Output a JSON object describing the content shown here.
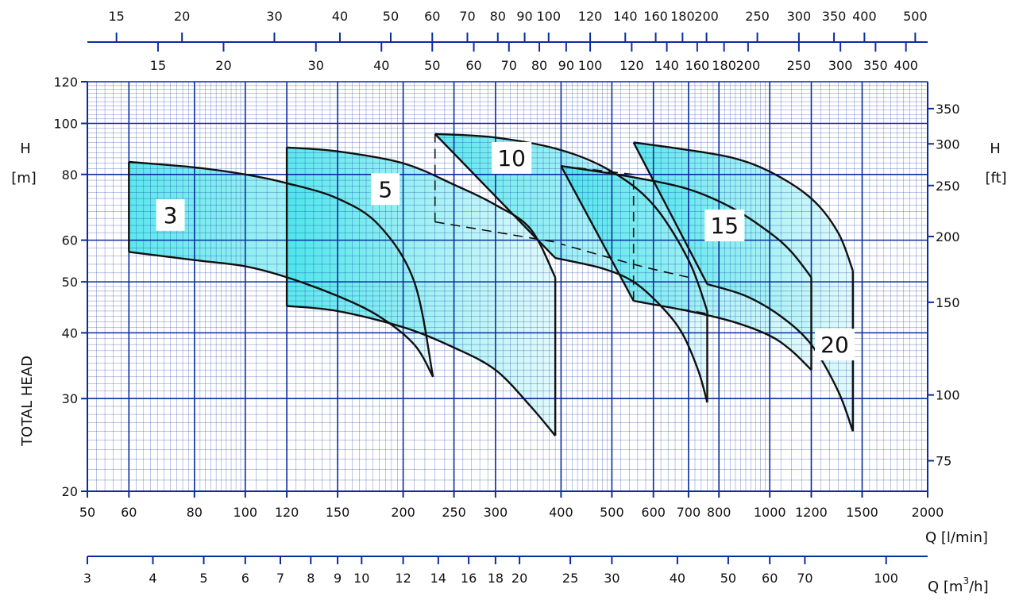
{
  "chart_data": {
    "type": "area",
    "xscale": "log",
    "yscale": "log",
    "xlim": [
      50,
      2000
    ],
    "ylim": [
      20,
      120
    ],
    "xlabel": "Q [l/min]",
    "ylabel_left": "TOTAL HEAD",
    "ylabel_left_unit_h": "H",
    "ylabel_left_unit": "[m]",
    "ylabel_right_unit_h": "H",
    "ylabel_right_unit": "[ft]",
    "x2label": "Q [m",
    "x2label_sup": "3",
    "x2label_end": "/h]",
    "grid": true,
    "colors": {
      "grid": "#0b2e9e",
      "fill": "#5ee9ee",
      "curve": "#111111",
      "axis": "#0b2e9e"
    },
    "x_ticks_lpm": [
      50,
      60,
      80,
      100,
      120,
      150,
      200,
      250,
      300,
      400,
      500,
      600,
      700,
      800,
      1000,
      1200,
      1500,
      2000
    ],
    "y_ticks_m": [
      20,
      30,
      40,
      50,
      60,
      80,
      100,
      120
    ],
    "y_ticks_ft": [
      75,
      100,
      150,
      200,
      250,
      300,
      350
    ],
    "m3h_ticks": [
      3,
      4,
      5,
      6,
      7,
      8,
      9,
      10,
      12,
      14,
      16,
      18,
      20,
      25,
      30,
      40,
      50,
      60,
      70,
      100
    ],
    "top_row1_ticks": [
      15,
      20,
      30,
      40,
      50,
      60,
      70,
      80,
      90,
      100,
      120,
      140,
      160,
      180,
      200,
      250,
      300,
      350,
      400,
      500
    ],
    "top_row2_ticks": [
      15,
      20,
      30,
      40,
      50,
      60,
      70,
      80,
      90,
      100,
      120,
      140,
      160,
      180,
      200,
      250,
      300,
      350,
      400
    ],
    "regions": [
      {
        "label": "3",
        "label_pos": [
          72,
          67
        ],
        "upper": [
          [
            60,
            84.5
          ],
          [
            80,
            82.5
          ],
          [
            100,
            80
          ],
          [
            120,
            77
          ],
          [
            150,
            72
          ],
          [
            180,
            64
          ],
          [
            210,
            50
          ],
          [
            228,
            33
          ]
        ],
        "lower": [
          [
            60,
            57
          ],
          [
            80,
            55
          ],
          [
            100,
            53.5
          ],
          [
            120,
            51
          ],
          [
            150,
            47
          ],
          [
            180,
            43
          ],
          [
            210,
            38
          ],
          [
            228,
            33
          ]
        ],
        "dashed_upper": [],
        "dashed_lower": []
      },
      {
        "label": "5",
        "label_pos": [
          185,
          75
        ],
        "upper": [
          [
            120,
            90
          ],
          [
            150,
            88.5
          ],
          [
            200,
            84
          ],
          [
            250,
            76.5
          ],
          [
            300,
            70
          ],
          [
            350,
            63
          ],
          [
            390,
            51
          ]
        ],
        "lower": [
          [
            120,
            45
          ],
          [
            150,
            44
          ],
          [
            200,
            41
          ],
          [
            250,
            37.5
          ],
          [
            300,
            34
          ],
          [
            350,
            29
          ],
          [
            390,
            25.5
          ]
        ],
        "dashed_upper": [],
        "dashed_lower": []
      },
      {
        "label": "10",
        "label_pos": [
          322,
          86
        ],
        "upper": [
          [
            230,
            95.5
          ],
          [
            300,
            94
          ],
          [
            400,
            89
          ],
          [
            500,
            81
          ],
          [
            600,
            70
          ],
          [
            700,
            55
          ],
          [
            760,
            44
          ]
        ],
        "lower": [
          [
            390,
            55.5
          ],
          [
            480,
            53
          ],
          [
            550,
            50
          ],
          [
            620,
            45
          ],
          [
            680,
            40
          ],
          [
            730,
            34
          ],
          [
            760,
            29.5
          ]
        ],
        "dashed_upper": [
          [
            230,
            65
          ],
          [
            390,
            59.5
          ]
        ],
        "dashed_lower": [
          [
            230,
            65
          ],
          [
            230,
            95.5
          ]
        ]
      },
      {
        "label": "15",
        "label_pos": [
          820,
          64
        ],
        "upper": [
          [
            400,
            83
          ],
          [
            550,
            79
          ],
          [
            700,
            75
          ],
          [
            850,
            69
          ],
          [
            1000,
            62
          ],
          [
            1100,
            57
          ],
          [
            1200,
            51
          ]
        ],
        "lower": [
          [
            550,
            46
          ],
          [
            700,
            44
          ],
          [
            850,
            42
          ],
          [
            1000,
            39.5
          ],
          [
            1100,
            37
          ],
          [
            1200,
            34
          ]
        ],
        "dashed_upper": [
          [
            400,
            83
          ],
          [
            550,
            80
          ]
        ],
        "dashed_lower": [
          [
            550,
            46
          ],
          [
            550,
            80
          ]
        ]
      },
      {
        "label": "20",
        "label_pos": [
          1330,
          38
        ],
        "upper": [
          [
            550,
            92
          ],
          [
            700,
            89
          ],
          [
            850,
            86
          ],
          [
            1000,
            81
          ],
          [
            1200,
            72
          ],
          [
            1350,
            62
          ],
          [
            1440,
            52.5
          ]
        ],
        "lower": [
          [
            760,
            49.5
          ],
          [
            900,
            47
          ],
          [
            1050,
            43
          ],
          [
            1200,
            38
          ],
          [
            1350,
            31
          ],
          [
            1440,
            26
          ]
        ],
        "dashed_upper": [
          [
            700,
            51
          ],
          [
            550,
            54
          ],
          [
            400,
            59
          ]
        ],
        "dashed_lower": [
          [
            550,
            46
          ],
          [
            760,
            43.5
          ]
        ]
      }
    ]
  }
}
